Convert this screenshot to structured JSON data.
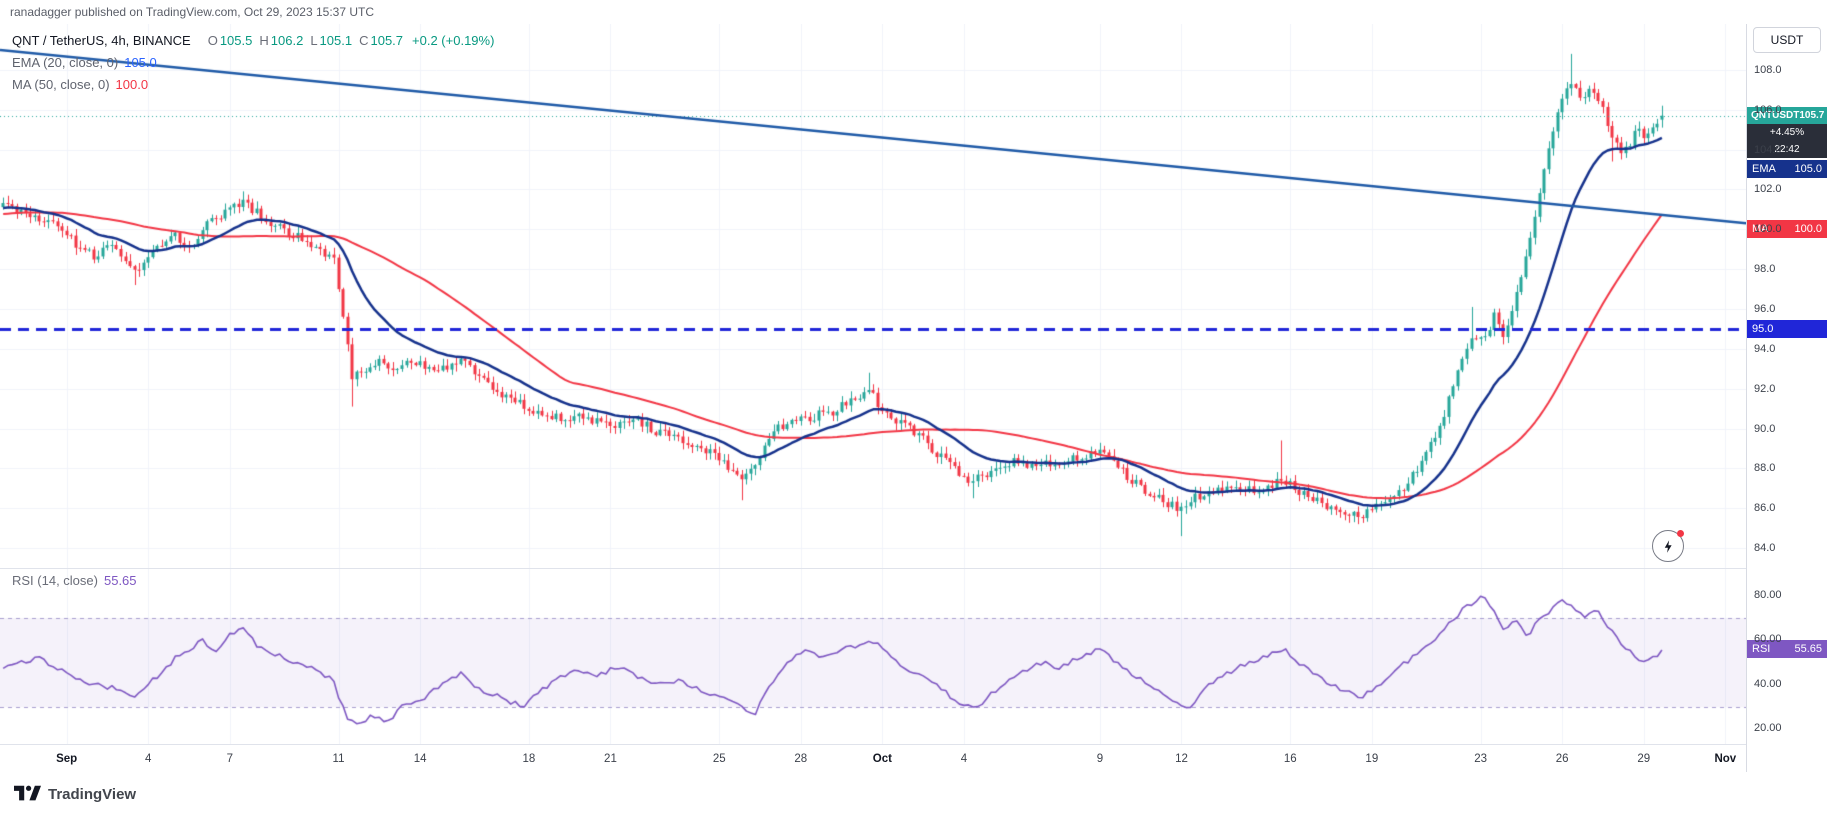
{
  "attribution": {
    "text": "ranadagger published on TradingView.com, Oct 29, 2023 15:37 UTC"
  },
  "header": {
    "symbol_title": "QNT / TetherUS, 4h, BINANCE",
    "ohlc": [
      {
        "label": "O",
        "value": "105.5"
      },
      {
        "label": "H",
        "value": "106.2"
      },
      {
        "label": "L",
        "value": "105.1"
      },
      {
        "label": "C",
        "value": "105.7"
      }
    ],
    "change": "+0.2 (+0.19%)",
    "ema": {
      "label": "EMA (20, close, 0)",
      "value": "105.0"
    },
    "ma": {
      "label": "MA (50, close, 0)",
      "value": "100.0"
    }
  },
  "rsi_header": {
    "label": "RSI (14, close)",
    "value": "55.65"
  },
  "price_axis": {
    "currency_button": "USDT",
    "labels": {
      "last": {
        "symbol": "QNTUSDT",
        "price": "105.7",
        "change": "+4.45%",
        "countdown": "22:42"
      },
      "ema": {
        "label": "EMA",
        "value": "105.0"
      },
      "ma": {
        "label": "MA",
        "value": "100.0"
      },
      "hline": {
        "value": "95.0"
      },
      "rsi": {
        "label": "RSI",
        "value": "55.65"
      }
    }
  },
  "watermark": {
    "brand": "TradingView"
  },
  "colors": {
    "up": "#26a69a",
    "down": "#f23645",
    "ema": "#16328c",
    "ma": "#f23645",
    "trend": "#1f5aa7",
    "hline": "#2026d8",
    "last_price_line": "#26a69a",
    "rsi": "#7e57c2",
    "rsi_band": "rgba(126,87,194,0.08)",
    "rsi_band_border": "#a79ecf",
    "grid": "#f0f3fa"
  },
  "chart_data": {
    "type": "candlestick",
    "symbol": "QNT/USDT",
    "exchange": "BINANCE",
    "interval": "4h",
    "last": {
      "o": 105.5,
      "h": 106.2,
      "l": 105.1,
      "c": 105.7
    },
    "price_range": [
      83.0,
      110.3
    ],
    "day_range": [
      -1.45,
      62.76
    ],
    "candle_start_day": -1.3333,
    "candle_end_day": 59.6667,
    "warmup_start_day": -11.3333,
    "candles_per_day": 6,
    "seed": 20231029,
    "price_ticks": [
      108,
      106,
      104,
      102,
      100,
      98,
      96,
      94,
      92,
      90,
      88,
      86,
      84
    ],
    "time_ticks": [
      {
        "label": "Sep",
        "day": 1,
        "month": true
      },
      {
        "label": "4",
        "day": 4
      },
      {
        "label": "7",
        "day": 7
      },
      {
        "label": "11",
        "day": 11
      },
      {
        "label": "14",
        "day": 14
      },
      {
        "label": "18",
        "day": 18
      },
      {
        "label": "21",
        "day": 21
      },
      {
        "label": "25",
        "day": 25
      },
      {
        "label": "28",
        "day": 28
      },
      {
        "label": "Oct",
        "day": 31,
        "month": true
      },
      {
        "label": "4",
        "day": 34
      },
      {
        "label": "9",
        "day": 39
      },
      {
        "label": "12",
        "day": 42
      },
      {
        "label": "16",
        "day": 46
      },
      {
        "label": "19",
        "day": 49
      },
      {
        "label": "23",
        "day": 53
      },
      {
        "label": "26",
        "day": 56
      },
      {
        "label": "29",
        "day": 59
      },
      {
        "label": "Nov",
        "day": 62,
        "month": true
      }
    ],
    "price_path": [
      [
        -12,
        99.8
      ],
      [
        -8,
        100.5
      ],
      [
        -4,
        100.9
      ],
      [
        -1.4,
        101.2
      ],
      [
        -0.5,
        100.8
      ],
      [
        0.5,
        100.2
      ],
      [
        1.2,
        99.4
      ],
      [
        2,
        98.6
      ],
      [
        2.6,
        99.6
      ],
      [
        3.2,
        98.3
      ],
      [
        3.6,
        97.6
      ],
      [
        4.2,
        99.2
      ],
      [
        5,
        99.6
      ],
      [
        5.6,
        99.2
      ],
      [
        6.2,
        100.3
      ],
      [
        7,
        100.9
      ],
      [
        7.5,
        101.4
      ],
      [
        8.2,
        100.6
      ],
      [
        9,
        100
      ],
      [
        10,
        99.3
      ],
      [
        10.8,
        98.6
      ],
      [
        11.2,
        95.5
      ],
      [
        11.5,
        92.6
      ],
      [
        12,
        92.9
      ],
      [
        12.5,
        93.4
      ],
      [
        13,
        92.8
      ],
      [
        13.6,
        93.6
      ],
      [
        14.2,
        93.1
      ],
      [
        15,
        92.9
      ],
      [
        15.6,
        93.4
      ],
      [
        16.2,
        92.5
      ],
      [
        17,
        91.8
      ],
      [
        17.8,
        91.2
      ],
      [
        18.4,
        90.8
      ],
      [
        19.2,
        90.4
      ],
      [
        20,
        90.6
      ],
      [
        21,
        90.2
      ],
      [
        22,
        90.4
      ],
      [
        22.8,
        89.8
      ],
      [
        23.6,
        89.3
      ],
      [
        24.4,
        89
      ],
      [
        25.2,
        88.2
      ],
      [
        25.8,
        87.6
      ],
      [
        26.3,
        88.3
      ],
      [
        27,
        89.8
      ],
      [
        27.6,
        90.4
      ],
      [
        28.4,
        90.6
      ],
      [
        29.2,
        90.9
      ],
      [
        30,
        91.4
      ],
      [
        30.5,
        91.9
      ],
      [
        31,
        91
      ],
      [
        31.8,
        90.2
      ],
      [
        32.6,
        89.3
      ],
      [
        33.4,
        88.2
      ],
      [
        34.2,
        87.3
      ],
      [
        35,
        87.9
      ],
      [
        35.8,
        88.4
      ],
      [
        36.6,
        88.1
      ],
      [
        37.4,
        88.4
      ],
      [
        38.2,
        88.6
      ],
      [
        39,
        88.8
      ],
      [
        39.6,
        88.1
      ],
      [
        40.4,
        87.2
      ],
      [
        41.2,
        86.4
      ],
      [
        42,
        85.9
      ],
      [
        42.6,
        86.6
      ],
      [
        43.4,
        86.9
      ],
      [
        44.2,
        87.1
      ],
      [
        45,
        86.8
      ],
      [
        45.6,
        87.6
      ],
      [
        46.2,
        87
      ],
      [
        47,
        86.3
      ],
      [
        48,
        85.9
      ],
      [
        48.6,
        85.6
      ],
      [
        49.4,
        86.2
      ],
      [
        50.2,
        87
      ],
      [
        51,
        88.6
      ],
      [
        51.6,
        90.5
      ],
      [
        52.2,
        93
      ],
      [
        52.7,
        94.8
      ],
      [
        53.1,
        94.2
      ],
      [
        53.5,
        95.8
      ],
      [
        53.9,
        94.6
      ],
      [
        54.3,
        96.8
      ],
      [
        54.7,
        98.6
      ],
      [
        55.1,
        101.5
      ],
      [
        55.5,
        104
      ],
      [
        55.9,
        106.2
      ],
      [
        56.3,
        107.2
      ],
      [
        56.7,
        106.6
      ],
      [
        57.1,
        107.1
      ],
      [
        57.5,
        105.9
      ],
      [
        57.9,
        104.4
      ],
      [
        58.3,
        103.9
      ],
      [
        58.7,
        104.9
      ],
      [
        59.1,
        104.6
      ],
      [
        59.65,
        105.7
      ]
    ],
    "spikes": [
      {
        "day": 3.5,
        "low": 97.2
      },
      {
        "day": 7.5,
        "high": 101.9
      },
      {
        "day": 11.55,
        "low": 91.1
      },
      {
        "day": 25.9,
        "low": 86.4
      },
      {
        "day": 30.5,
        "high": 92.8
      },
      {
        "day": 34.3,
        "low": 86.5
      },
      {
        "day": 42.05,
        "low": 84.6
      },
      {
        "day": 45.7,
        "high": 89.4
      },
      {
        "day": 48.5,
        "low": 85.2
      },
      {
        "day": 52.7,
        "high": 96.1
      },
      {
        "day": 54.8,
        "high": 99.4
      },
      {
        "day": 56.3,
        "high": 108.8
      },
      {
        "day": 57.9,
        "low": 103.4
      }
    ],
    "overlays": {
      "ema_period": 20,
      "ema_last": 105.0,
      "ma_period": 50,
      "ma_last": 100.0
    },
    "trendline": {
      "from": [
        -1.45,
        109.0
      ],
      "to": [
        62.76,
        100.3
      ]
    },
    "hline": 95.0,
    "last_price_line": 105.7,
    "rsi": {
      "period": 14,
      "range": [
        13,
        92
      ],
      "ticks": [
        80,
        60,
        40,
        20
      ],
      "bands": [
        30,
        70
      ],
      "last": 55.65,
      "path": [
        [
          -1.4,
          48
        ],
        [
          0,
          52
        ],
        [
          1,
          45
        ],
        [
          2,
          40
        ],
        [
          3,
          38
        ],
        [
          3.5,
          35
        ],
        [
          4,
          40
        ],
        [
          5,
          52
        ],
        [
          6,
          60
        ],
        [
          6.5,
          55
        ],
        [
          7,
          63
        ],
        [
          7.5,
          65
        ],
        [
          8,
          58
        ],
        [
          9,
          52
        ],
        [
          10,
          48
        ],
        [
          10.8,
          42
        ],
        [
          11.3,
          25
        ],
        [
          11.8,
          22
        ],
        [
          12.2,
          26
        ],
        [
          12.8,
          23
        ],
        [
          13.3,
          30
        ],
        [
          14,
          33
        ],
        [
          14.8,
          40
        ],
        [
          15.5,
          45
        ],
        [
          16.2,
          38
        ],
        [
          17,
          34
        ],
        [
          17.8,
          30
        ],
        [
          18.3,
          36
        ],
        [
          19,
          42
        ],
        [
          19.8,
          47
        ],
        [
          20.5,
          44
        ],
        [
          21.2,
          48
        ],
        [
          22,
          44
        ],
        [
          22.8,
          40
        ],
        [
          23.5,
          42
        ],
        [
          24.2,
          38
        ],
        [
          25,
          35
        ],
        [
          25.8,
          30
        ],
        [
          26.3,
          27
        ],
        [
          26.8,
          38
        ],
        [
          27.5,
          50
        ],
        [
          28.2,
          56
        ],
        [
          28.8,
          52
        ],
        [
          29.5,
          56
        ],
        [
          30.2,
          58
        ],
        [
          30.8,
          60
        ],
        [
          31.3,
          52
        ],
        [
          32,
          46
        ],
        [
          33,
          40
        ],
        [
          33.8,
          32
        ],
        [
          34.5,
          30
        ],
        [
          35.2,
          38
        ],
        [
          36,
          45
        ],
        [
          36.8,
          50
        ],
        [
          37.5,
          48
        ],
        [
          38.2,
          52
        ],
        [
          39,
          56
        ],
        [
          39.6,
          50
        ],
        [
          40.3,
          44
        ],
        [
          41,
          38
        ],
        [
          41.8,
          32
        ],
        [
          42.3,
          30
        ],
        [
          43,
          40
        ],
        [
          43.8,
          46
        ],
        [
          44.5,
          50
        ],
        [
          45.2,
          53
        ],
        [
          45.8,
          56
        ],
        [
          46.5,
          48
        ],
        [
          47.2,
          42
        ],
        [
          48,
          37
        ],
        [
          48.6,
          34
        ],
        [
          49.3,
          40
        ],
        [
          50,
          48
        ],
        [
          50.8,
          55
        ],
        [
          51.5,
          63
        ],
        [
          52.2,
          72
        ],
        [
          52.8,
          78
        ],
        [
          53.1,
          81
        ],
        [
          53.5,
          72
        ],
        [
          53.9,
          64
        ],
        [
          54.3,
          70
        ],
        [
          54.7,
          62
        ],
        [
          55.1,
          68
        ],
        [
          55.6,
          74
        ],
        [
          56,
          78
        ],
        [
          56.4,
          75
        ],
        [
          56.8,
          70
        ],
        [
          57.2,
          74
        ],
        [
          57.6,
          68
        ],
        [
          58,
          61
        ],
        [
          58.4,
          56
        ],
        [
          58.8,
          52
        ],
        [
          59.2,
          50
        ],
        [
          59.65,
          55.65
        ]
      ]
    }
  }
}
